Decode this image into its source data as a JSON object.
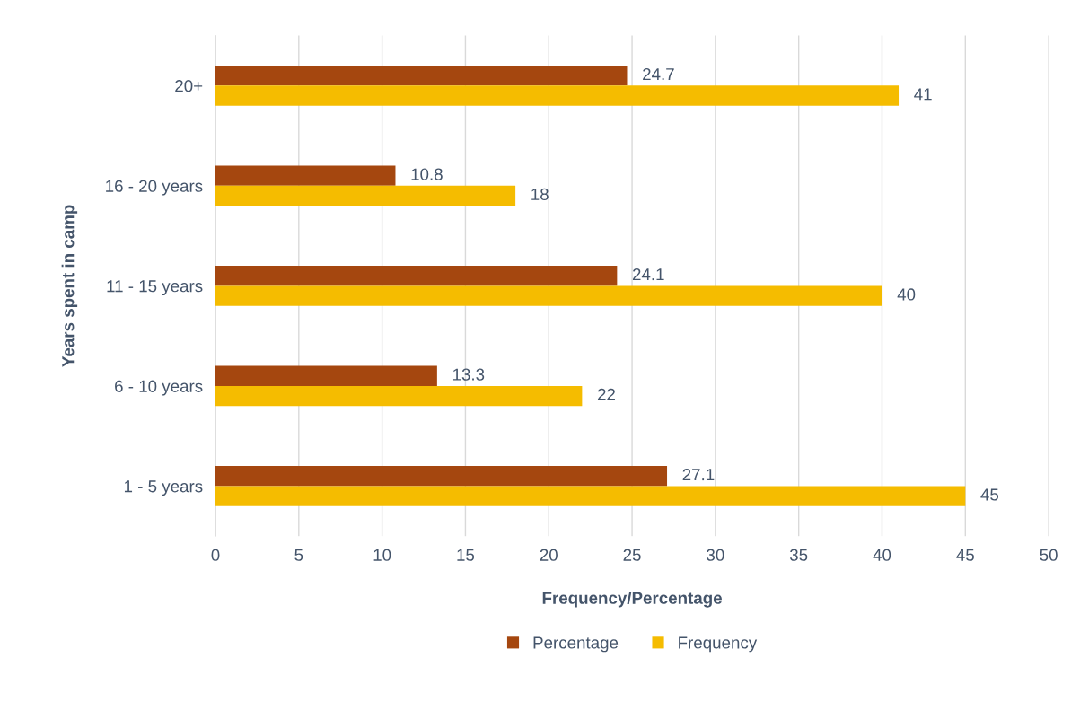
{
  "chart_data": {
    "type": "bar",
    "orientation": "horizontal",
    "xlabel": "Frequency/Percentage",
    "ylabel": "Years spent in camp",
    "categories": [
      "20+",
      "16 - 20 years",
      "11 - 15 years",
      "6 - 10 years",
      "1 - 5 years"
    ],
    "series": [
      {
        "name": "Percentage",
        "color": "#a5470f",
        "values": [
          24.7,
          10.8,
          24.1,
          13.3,
          27.1
        ]
      },
      {
        "name": "Frequency",
        "color": "#f5bc00",
        "values": [
          41,
          18,
          40,
          22,
          45
        ]
      }
    ],
    "xlim": [
      0,
      50
    ],
    "xticks": [
      0,
      5,
      10,
      15,
      20,
      25,
      30,
      35,
      40,
      45,
      50
    ],
    "grid": "x",
    "legend": "bottom",
    "data_labels": true
  }
}
